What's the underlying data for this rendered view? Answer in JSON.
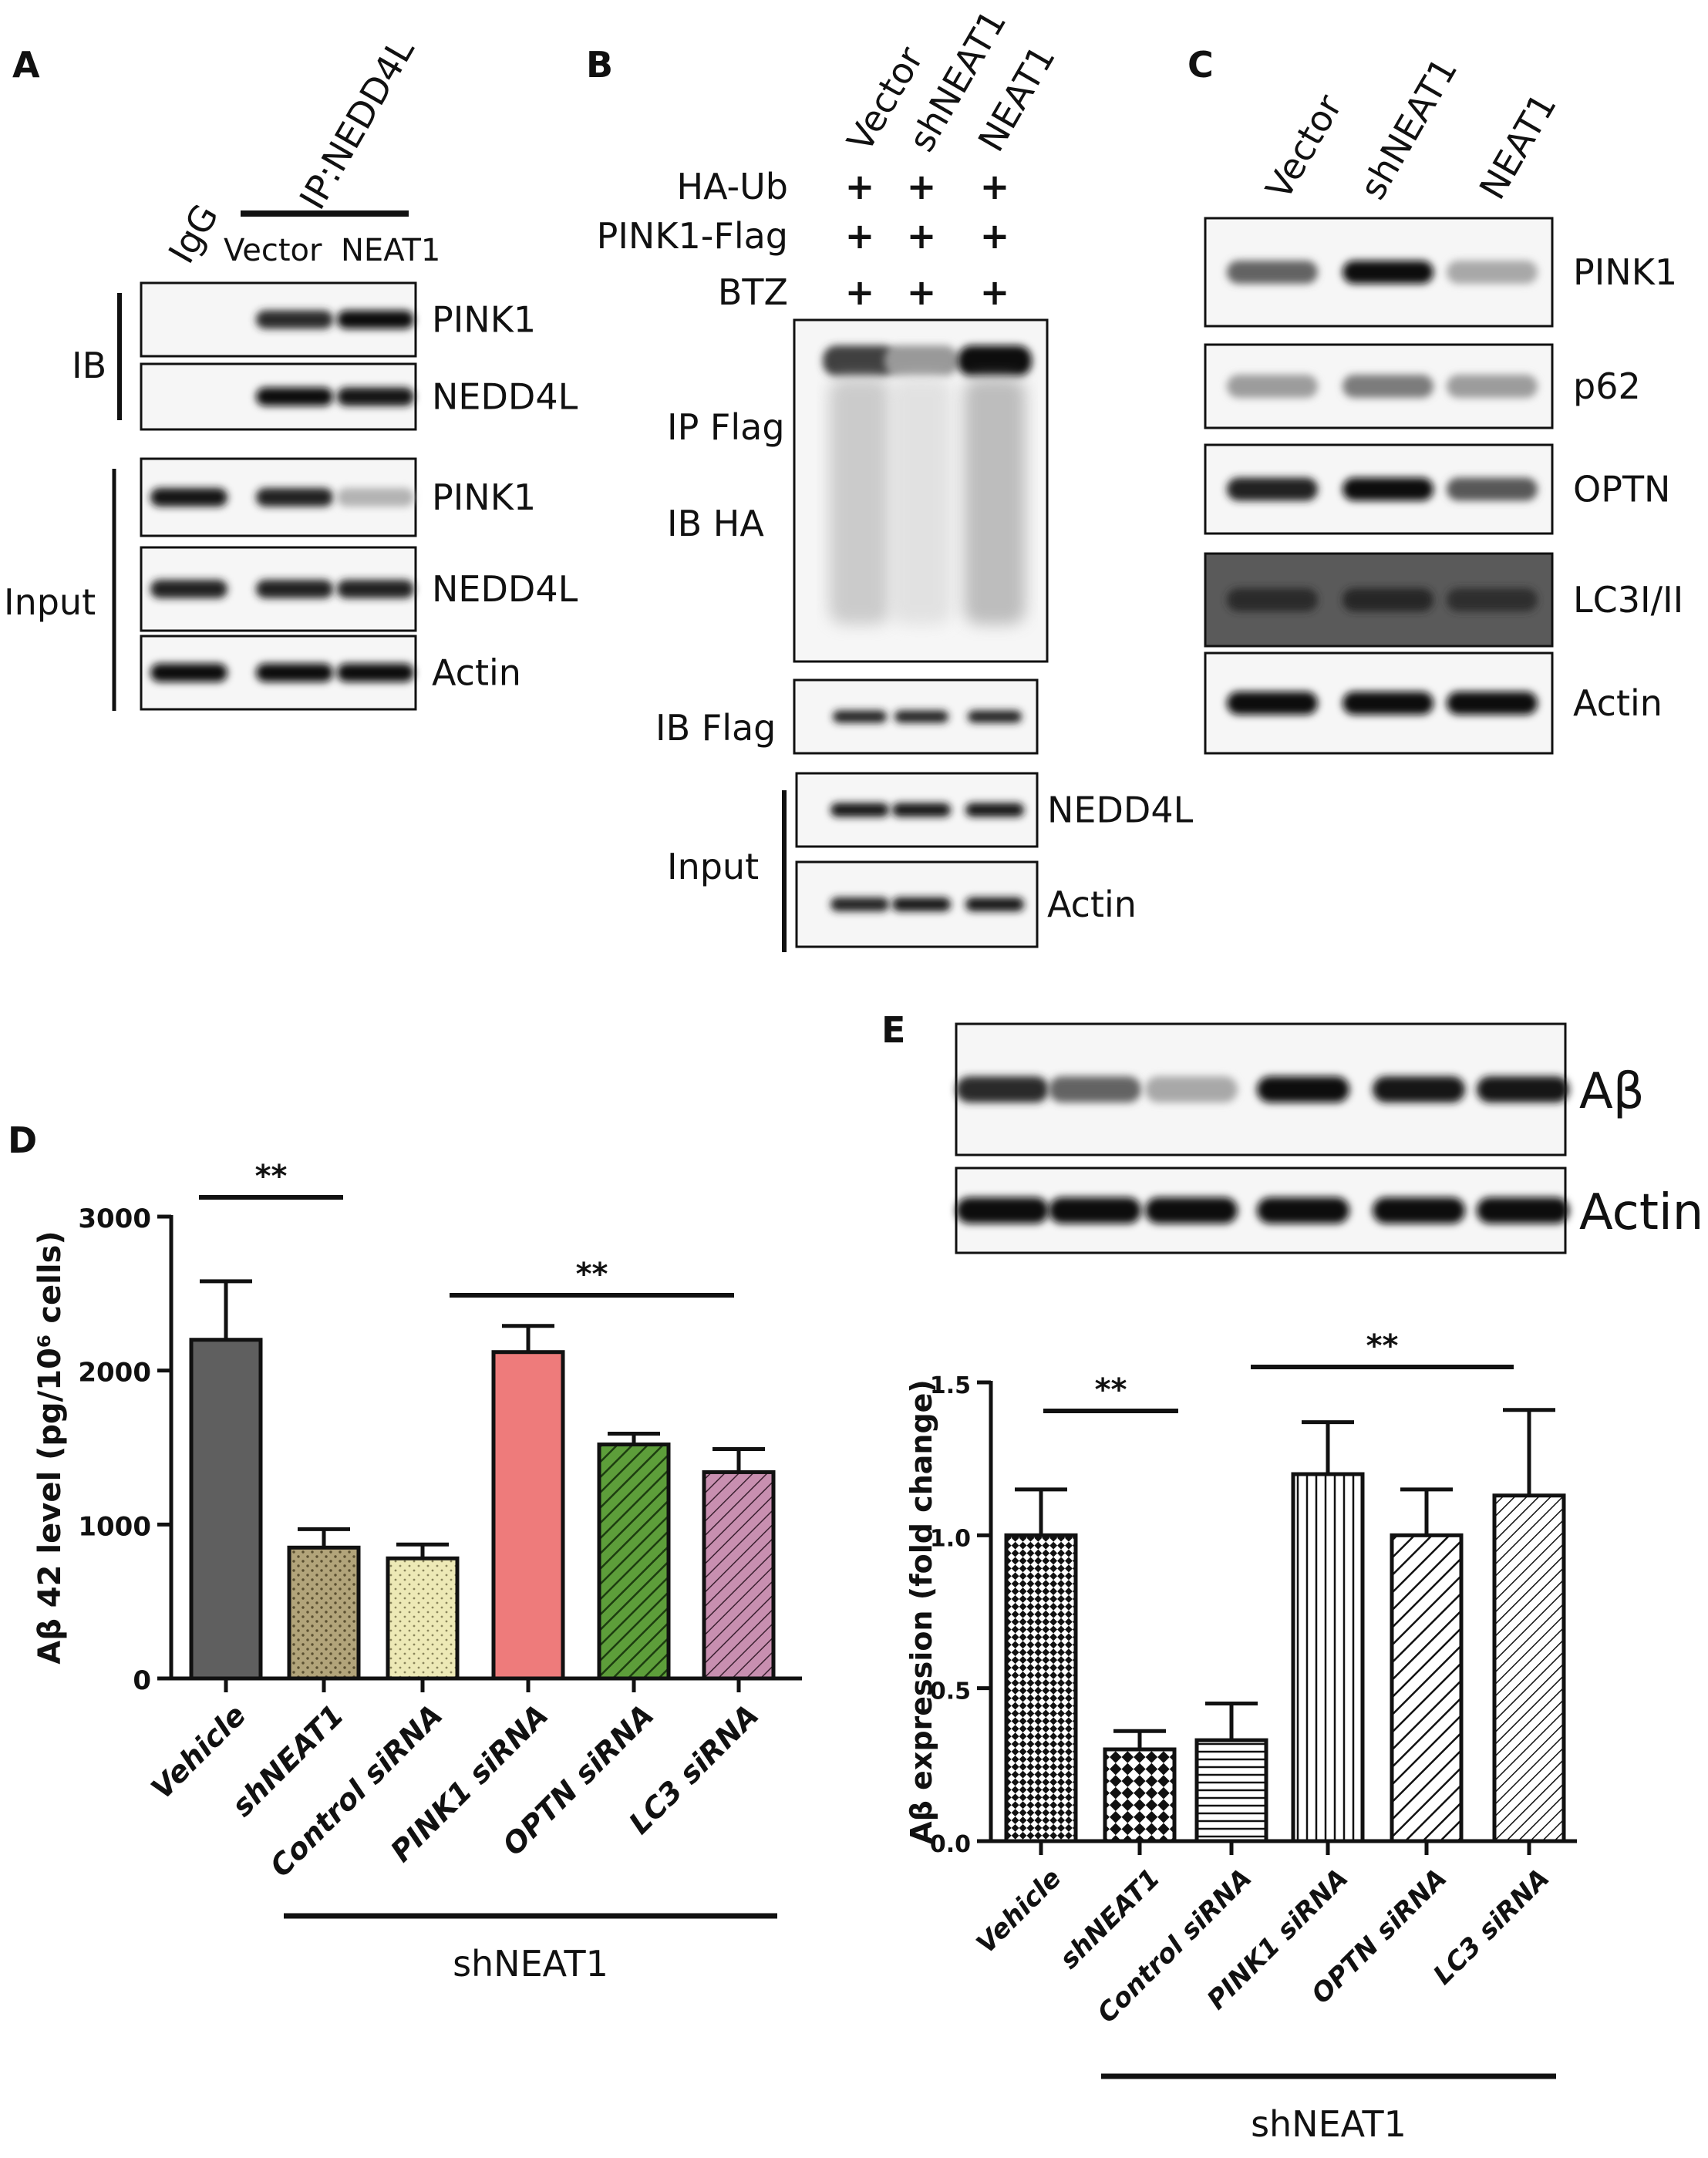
{
  "panels": {
    "A": {
      "letter": "A",
      "header": {
        "igg": "IgG",
        "ip": "IP:NEDD4L",
        "lanes": [
          "Vector",
          "NEAT1"
        ]
      },
      "groups": {
        "ib": "IB",
        "input": "Input"
      },
      "rows": [
        {
          "label": "PINK1",
          "bands": [
            0.0,
            0.85,
            1.0
          ]
        },
        {
          "label": "NEDD4L",
          "bands": [
            0.0,
            1.0,
            0.95
          ]
        },
        {
          "label": "PINK1",
          "bands": [
            0.95,
            0.9,
            0.25
          ]
        },
        {
          "label": "NEDD4L",
          "bands": [
            0.9,
            0.9,
            0.9
          ]
        },
        {
          "label": "Actin",
          "bands": [
            1.0,
            1.0,
            1.0
          ]
        }
      ]
    },
    "B": {
      "letter": "B",
      "lanes": [
        "Vector",
        "shNEAT1",
        "NEAT1"
      ],
      "treatments": [
        {
          "label": "HA-Ub",
          "marks": [
            "+",
            "+",
            "+"
          ]
        },
        {
          "label": "PINK1-Flag",
          "marks": [
            "+",
            "+",
            "+"
          ]
        },
        {
          "label": "BTZ",
          "marks": [
            "+",
            "+",
            "+"
          ]
        }
      ],
      "ip_label": "IP Flag",
      "ib_label": "IB HA",
      "smear": [
        0.75,
        0.35,
        1.0
      ],
      "ibflag_label": "IB Flag",
      "ibflag_bands": [
        0.9,
        0.9,
        0.9
      ],
      "input_label": "Input",
      "input_rows": [
        {
          "label": "NEDD4L",
          "bands": [
            0.95,
            0.95,
            0.95
          ]
        },
        {
          "label": "Actin",
          "bands": [
            0.9,
            0.95,
            0.95
          ]
        }
      ]
    },
    "C": {
      "letter": "C",
      "lanes": [
        "Vector",
        "shNEAT1",
        "NEAT1"
      ],
      "rows": [
        {
          "label": "PINK1",
          "bands": [
            0.6,
            1.0,
            0.3
          ]
        },
        {
          "label": "p62",
          "bands": [
            0.35,
            0.5,
            0.35
          ]
        },
        {
          "label": "OPTN",
          "bands": [
            0.9,
            1.0,
            0.65
          ]
        },
        {
          "label": "LC3I/II",
          "bands": [
            0.7,
            0.8,
            0.6
          ]
        },
        {
          "label": "Actin",
          "bands": [
            1.0,
            1.0,
            1.0
          ]
        }
      ]
    },
    "D": {
      "letter": "D",
      "bracket_label": "shNEAT1",
      "sig_left": "**",
      "sig_right": "**"
    },
    "E": {
      "letter": "E",
      "blot_rows": [
        {
          "label": "Aβ",
          "bands": [
            0.85,
            0.6,
            0.3,
            1.0,
            0.95,
            0.95
          ]
        },
        {
          "label": "Actin",
          "bands": [
            1.0,
            1.0,
            1.0,
            1.0,
            1.0,
            1.0
          ]
        }
      ],
      "bracket_label": "shNEAT1",
      "sig_left": "**",
      "sig_right": "**"
    }
  },
  "chart_data": [
    {
      "type": "bar",
      "panel": "D",
      "categories": [
        "Vehicle",
        "shNEAT1",
        "Control siRNA",
        "PINK1 siRNA",
        "OPTN siRNA",
        "LC3 siRNA"
      ],
      "values": [
        2200,
        850,
        780,
        2120,
        1520,
        1340
      ],
      "errors": [
        380,
        120,
        90,
        170,
        70,
        150
      ],
      "ylabel": "Aβ 42 level (pg/10⁶ cells)",
      "ylim": [
        0,
        3000
      ],
      "yticks": [
        "0",
        "1000",
        "2000",
        "3000"
      ],
      "colors": [
        "#5f5f5f",
        "#b2a47a",
        "#ede9b6",
        "#ee7b7b",
        "#5d9e3a",
        "#c88fb0"
      ],
      "patterns": [
        "solid",
        "dots",
        "dots",
        "solid",
        "hatch",
        "hatch"
      ]
    },
    {
      "type": "bar",
      "panel": "E",
      "categories": [
        "Vehicle",
        "shNEAT1",
        "Control siRNA",
        "PINK1 siRNA",
        "OPTN siRNA",
        "LC3 siRNA"
      ],
      "values": [
        1.0,
        0.3,
        0.33,
        1.2,
        1.0,
        1.13
      ],
      "errors": [
        0.15,
        0.06,
        0.12,
        0.17,
        0.15,
        0.28
      ],
      "ylabel": "Aβ  expression (fold change)",
      "ylim": [
        0,
        1.5
      ],
      "yticks": [
        "0.0",
        "0.5",
        "1.0",
        "1.5"
      ],
      "patterns": [
        "crosshatch",
        "checker",
        "horizontal",
        "vertical",
        "diag-right",
        "diag-right-dense"
      ]
    }
  ]
}
